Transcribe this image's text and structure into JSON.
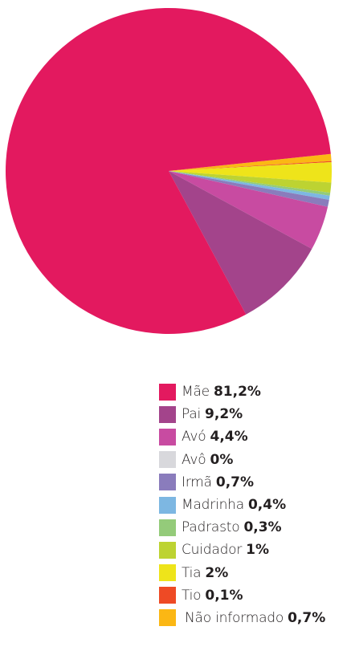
{
  "chart_data": {
    "type": "pie",
    "title": "",
    "legend_position": "bottom",
    "slices": [
      {
        "label": "Mãe",
        "display": "81,2%",
        "value": 81.2,
        "color": "#e3195f"
      },
      {
        "label": "Pai",
        "display": "9,2%",
        "value": 9.2,
        "color": "#a3448b"
      },
      {
        "label": "Avó",
        "display": "4,4%",
        "value": 4.4,
        "color": "#c84ba1"
      },
      {
        "label": "Avô",
        "display": "0%",
        "value": 0,
        "color": "#d8d8dc"
      },
      {
        "label": "Irmã",
        "display": "0,7%",
        "value": 0.7,
        "color": "#8a7cbc"
      },
      {
        "label": "Madrinha",
        "display": "0,4%",
        "value": 0.4,
        "color": "#7db7e2"
      },
      {
        "label": "Padrasto",
        "display": "0,3%",
        "value": 0.3,
        "color": "#94cb7a"
      },
      {
        "label": "Cuidador",
        "display": "1%",
        "value": 1,
        "color": "#bdd332"
      },
      {
        "label": "Tia",
        "display": "2%",
        "value": 2,
        "color": "#eee41a"
      },
      {
        "label": "Tio",
        "display": "0,1%",
        "value": 0.1,
        "color": "#ee4a25"
      },
      {
        "label": "Não informado",
        "display": "0,7%",
        "value": 0.7,
        "color": "#fbb714"
      }
    ]
  }
}
